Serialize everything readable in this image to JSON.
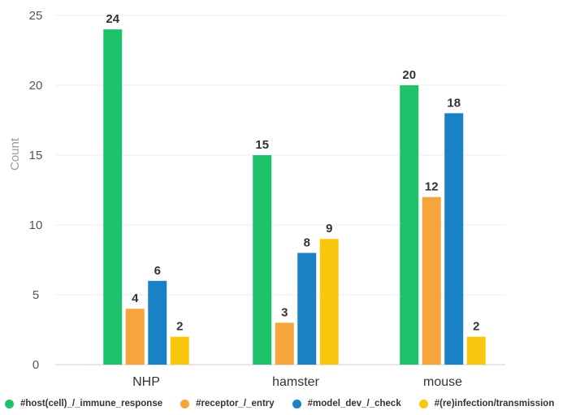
{
  "chart_data": {
    "type": "bar",
    "categories": [
      "NHP",
      "hamster",
      "mouse"
    ],
    "series": [
      {
        "name": "#host(cell)_/_immune_response",
        "color": "#1ec26a",
        "values": [
          24,
          15,
          20
        ]
      },
      {
        "name": "#receptor_/_entry",
        "color": "#f5a53c",
        "values": [
          4,
          3,
          12
        ]
      },
      {
        "name": "#model_dev_/_check",
        "color": "#1a82c4",
        "values": [
          6,
          8,
          18
        ]
      },
      {
        "name": "#(re)infection/transmission",
        "color": "#f9c80e",
        "values": [
          2,
          9,
          2
        ]
      }
    ],
    "ylabel": "Count",
    "xlabel": "",
    "ylim": [
      0,
      25
    ],
    "yticks": [
      0,
      5,
      10,
      15,
      20,
      25
    ],
    "grid": true,
    "legend_position": "bottom"
  }
}
